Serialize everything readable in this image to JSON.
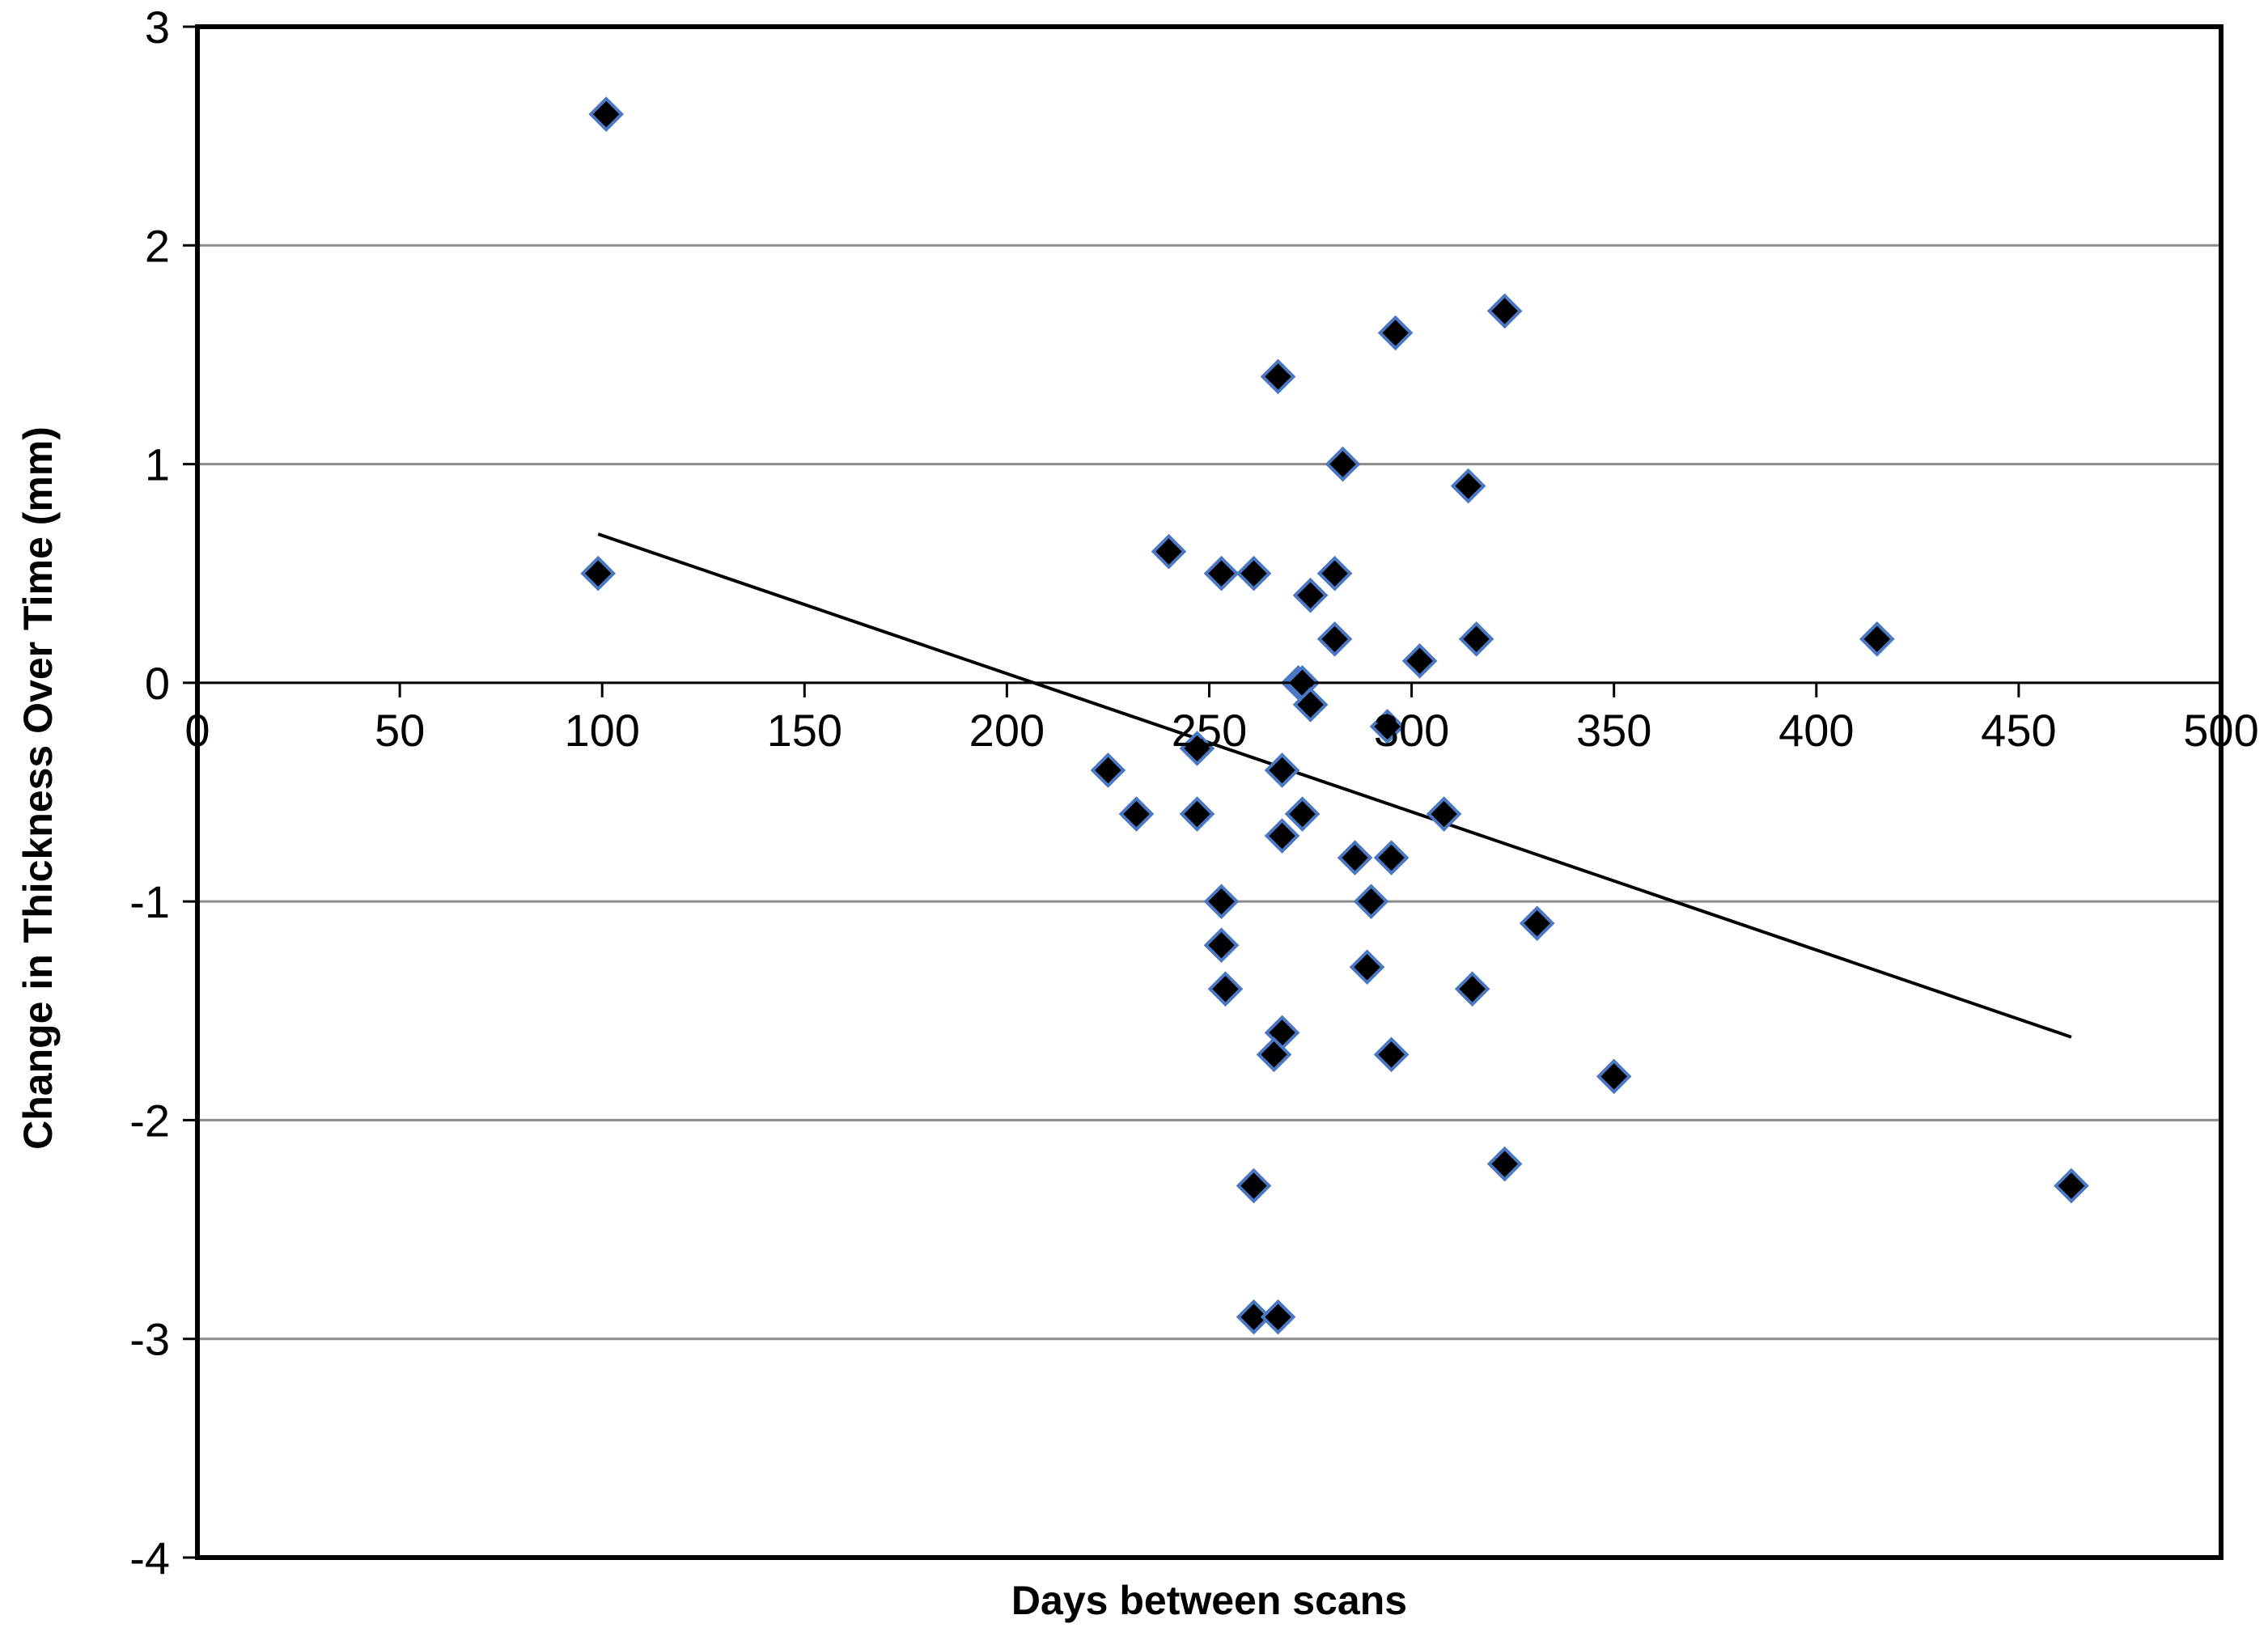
{
  "chart_data": {
    "type": "scatter",
    "title": "",
    "xlabel": "Days between scans",
    "ylabel": "Change in Thickness  Over Time (mm)",
    "xlim": [
      0,
      500
    ],
    "ylim": [
      -4,
      3
    ],
    "x_ticks": [
      0,
      50,
      100,
      150,
      200,
      250,
      300,
      350,
      400,
      450,
      500
    ],
    "y_ticks": [
      3,
      2,
      1,
      0,
      -1,
      -2,
      -3,
      -4
    ],
    "x_tick_labels": [
      "0",
      "50",
      "100",
      "150",
      "200",
      "250",
      "300",
      "350",
      "400",
      "450",
      "500"
    ],
    "y_tick_labels": [
      "3",
      "2",
      "1",
      "0",
      "-1",
      "-2",
      "-3",
      "-4"
    ],
    "grid": "horizontal",
    "legend": "none",
    "marker": "diamond",
    "marker_color": "#000000",
    "marker_edge_color": "#4a78c2",
    "trendline_color": "#000000",
    "series": [
      {
        "x": [
          101,
          99,
          267,
          296,
          323,
          283,
          314,
          240,
          253,
          261,
          275,
          281,
          281,
          302,
          316,
          415,
          272,
          273,
          275,
          294,
          247,
          225,
          232,
          247,
          268,
          273,
          268,
          308,
          286,
          295,
          253,
          290,
          331,
          253,
          254,
          289,
          315,
          268,
          266,
          295,
          350,
          323,
          261,
          463,
          261,
          267
        ],
        "y": [
          2.6,
          0.5,
          1.4,
          1.6,
          1.7,
          1.0,
          0.9,
          0.6,
          0.5,
          0.5,
          0.4,
          0.5,
          0.2,
          0.1,
          0.2,
          0.2,
          0.0,
          0.0,
          -0.1,
          -0.2,
          -0.3,
          -0.4,
          -0.6,
          -0.6,
          -0.4,
          -0.6,
          -0.7,
          -0.6,
          -0.8,
          -0.8,
          -1.0,
          -1.0,
          -1.1,
          -1.2,
          -1.4,
          -1.3,
          -1.4,
          -1.6,
          -1.7,
          -1.7,
          -1.8,
          -2.2,
          -2.3,
          -2.3,
          -2.9,
          -2.9
        ]
      }
    ],
    "trendline": {
      "x": [
        99,
        463
      ],
      "y": [
        0.68,
        -1.62
      ]
    }
  }
}
